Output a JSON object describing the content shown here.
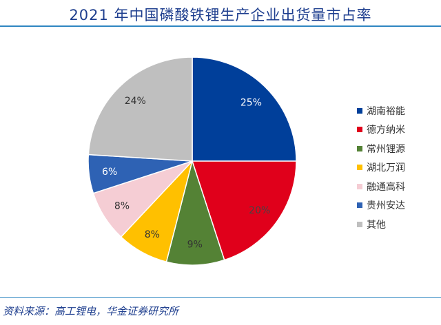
{
  "chart_data": {
    "type": "pie",
    "title": "2021 年中国磷酸铁锂生产企业出货量市占率",
    "categories": [
      "湖南裕能",
      "德方纳米",
      "常州锂源",
      "湖北万润",
      "融通高科",
      "贵州安达",
      "其他"
    ],
    "values": [
      25,
      20,
      9,
      8,
      8,
      6,
      24
    ],
    "data_labels": [
      "25%",
      "20%",
      "9%",
      "8%",
      "8%",
      "6%",
      "24%"
    ],
    "colors": [
      "#003f9a",
      "#e0001b",
      "#548235",
      "#ffc000",
      "#f5cdd4",
      "#2e62b4",
      "#bfbfbf"
    ],
    "label_colors": [
      "#ffffff",
      "#444444",
      "#333333",
      "#333333",
      "#333333",
      "#ffffff",
      "#333333"
    ],
    "start": "12 o'clock, clockwise",
    "legend_position": "right"
  },
  "source": "资料来源：高工锂电，华金证券研究所"
}
